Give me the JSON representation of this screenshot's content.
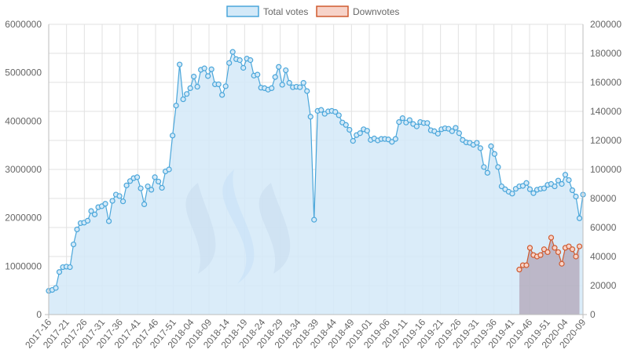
{
  "chart_data": {
    "type": "area",
    "legend": {
      "position": "top",
      "items": [
        {
          "label": "Total votes",
          "fill": "#d3e9f8",
          "stroke": "#4aa6da"
        },
        {
          "label": "Downvotes",
          "fill": "#f7d3c9",
          "stroke": "#cf5a2f"
        }
      ]
    },
    "left_axis": {
      "min": 0,
      "max": 6000000,
      "ticks": [
        "0",
        "1000000",
        "2000000",
        "3000000",
        "4000000",
        "5000000",
        "6000000"
      ]
    },
    "right_axis": {
      "min": 0,
      "max": 200000,
      "ticks": [
        "0",
        "20000",
        "40000",
        "60000",
        "80000",
        "100000",
        "120000",
        "140000",
        "160000",
        "180000",
        "200000"
      ]
    },
    "x_labels": [
      "2017-16",
      "2017-21",
      "2017-26",
      "2017-31",
      "2017-36",
      "2017-41",
      "2017-46",
      "2017-51",
      "2018-04",
      "2018-09",
      "2018-14",
      "2018-19",
      "2018-24",
      "2018-29",
      "2018-34",
      "2018-39",
      "2018-44",
      "2018-49",
      "2019-01",
      "2019-06",
      "2019-11",
      "2019-16",
      "2019-21",
      "2019-26",
      "2019-31",
      "2019-36",
      "2019-41",
      "2019-46",
      "2019-51",
      "2020-04",
      "2020-09"
    ],
    "grid": true,
    "series": [
      {
        "name": "Total votes",
        "axis": "left",
        "start_index": 0,
        "values": [
          490000,
          510000,
          550000,
          880000,
          980000,
          990000,
          980000,
          1450000,
          1760000,
          1890000,
          1900000,
          1940000,
          2140000,
          2070000,
          2220000,
          2240000,
          2290000,
          1930000,
          2350000,
          2480000,
          2450000,
          2340000,
          2670000,
          2760000,
          2820000,
          2840000,
          2610000,
          2280000,
          2650000,
          2580000,
          2840000,
          2750000,
          2620000,
          2960000,
          3000000,
          3700000,
          4320000,
          5170000,
          4450000,
          4560000,
          4680000,
          4920000,
          4710000,
          5060000,
          5090000,
          4930000,
          5070000,
          4760000,
          4760000,
          4540000,
          4720000,
          5200000,
          5430000,
          5280000,
          5260000,
          5100000,
          5290000,
          5260000,
          4940000,
          4960000,
          4690000,
          4680000,
          4650000,
          4680000,
          4910000,
          5120000,
          4750000,
          5050000,
          4790000,
          4700000,
          4710000,
          4700000,
          4790000,
          4620000,
          4090000,
          1960000,
          4210000,
          4230000,
          4150000,
          4200000,
          4210000,
          4190000,
          4120000,
          3970000,
          3920000,
          3820000,
          3590000,
          3710000,
          3750000,
          3830000,
          3800000,
          3610000,
          3640000,
          3600000,
          3630000,
          3630000,
          3620000,
          3570000,
          3630000,
          3980000,
          4060000,
          3970000,
          4020000,
          3940000,
          3890000,
          3980000,
          3960000,
          3960000,
          3810000,
          3790000,
          3740000,
          3830000,
          3850000,
          3840000,
          3790000,
          3860000,
          3750000,
          3610000,
          3560000,
          3550000,
          3510000,
          3550000,
          3440000,
          3050000,
          2930000,
          3480000,
          3320000,
          3050000,
          2650000,
          2590000,
          2540000,
          2500000,
          2600000,
          2650000,
          2660000,
          2720000,
          2590000,
          2510000,
          2580000,
          2600000,
          2610000,
          2680000,
          2700000,
          2650000,
          2770000,
          2700000,
          2890000,
          2780000,
          2570000,
          2440000,
          1990000,
          2480000
        ]
      },
      {
        "name": "Downvotes",
        "axis": "right",
        "start_index": 133,
        "values": [
          31000,
          34000,
          34000,
          46000,
          41000,
          40000,
          41000,
          45000,
          43000,
          53000,
          46000,
          43000,
          35000,
          46000,
          47000,
          45000,
          40000,
          47000
        ]
      }
    ]
  }
}
